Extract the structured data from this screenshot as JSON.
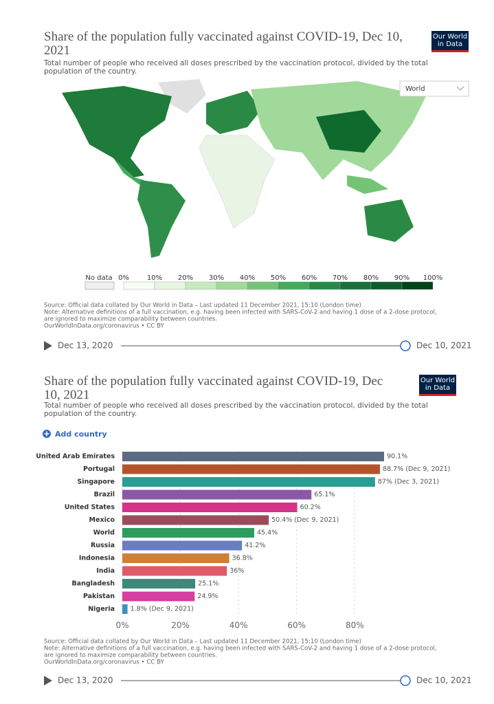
{
  "chart_data": [
    {
      "type": "map",
      "title": "Share of the population fully vaccinated against COVID-19, Dec 10, 2021",
      "subtitle": "Total number of people who received all doses prescribed by the vaccination protocol, divided by the total population of the country.",
      "logo": [
        "Our World",
        "in Data"
      ],
      "dropdown": "World",
      "legend": {
        "no_data_label": "No data",
        "xlim": [
          0,
          100
        ],
        "ticks": [
          {
            "value": 0,
            "label": "0%"
          },
          {
            "value": 10,
            "label": "10%"
          },
          {
            "value": 20,
            "label": "20%"
          },
          {
            "value": 30,
            "label": "30%"
          },
          {
            "value": 40,
            "label": "40%"
          },
          {
            "value": 50,
            "label": "50%"
          },
          {
            "value": 60,
            "label": "60%"
          },
          {
            "value": 70,
            "label": "70%"
          },
          {
            "value": 80,
            "label": "80%"
          },
          {
            "value": 90,
            "label": "90%"
          },
          {
            "value": 100,
            "label": "100%"
          }
        ],
        "colors": [
          "#f7fcf5",
          "#e5f5e0",
          "#c7e9c0",
          "#a1d99b",
          "#74c476",
          "#41ab5d",
          "#238b45",
          "#16723a",
          "#0d5c2e",
          "#00441b"
        ]
      },
      "source_lines": [
        "Source: Official data collated by Our World in Data – Last updated 11 December 2021, 15:10 (London time)",
        "Note: Alternative definitions of a full vaccination, e.g. having been infected with SARS-CoV-2 and having 1 dose of a 2-dose protocol,",
        "are ignored to maximize comparability between countries.",
        "OurWorldInData.org/coronavirus • CC BY"
      ],
      "timeline": [
        "Dec 13, 2020",
        "Dec 10, 2021"
      ]
    },
    {
      "type": "bar",
      "title": "Share of the population fully vaccinated against COVID-19, Dec 10, 2021",
      "subtitle": "Total number of people who received all doses prescribed by the vaccination protocol, divided by the total population of the country.",
      "logo": [
        "Our World",
        "in Data"
      ],
      "add_button": "Add country",
      "categories": [
        "United Arab Emirates",
        "Portugal",
        "Singapore",
        "Brazil",
        "United States",
        "Mexico",
        "World",
        "Russia",
        "Indonesia",
        "India",
        "Bangladesh",
        "Pakistan",
        "Nigeria"
      ],
      "values": [
        90.1,
        88.7,
        87,
        65.1,
        60.2,
        50.4,
        45.4,
        41.2,
        36.8,
        36,
        25.1,
        24.9,
        1.8
      ],
      "value_labels": [
        "90.1%",
        "88.7% (Dec 9, 2021)",
        "87% (Dec 3, 2021)",
        "65.1%",
        "60.2%",
        "50.4% (Dec 9, 2021)",
        "45.4%",
        "41.2%",
        "36.8%",
        "36%",
        "25.1%",
        "24.9%",
        "1.8% (Dec 9, 2021)"
      ],
      "colors": [
        "#5c6a85",
        "#b5532a",
        "#2a9d94",
        "#8b58a8",
        "#d3348a",
        "#9b4b5a",
        "#2e9c5f",
        "#6a7ec0",
        "#d08035",
        "#e05a6a",
        "#3a8a7c",
        "#d63ea0",
        "#3f8fc5"
      ],
      "xlim": [
        0,
        90.1
      ],
      "xticks": [
        {
          "value": 0,
          "label": "0%"
        },
        {
          "value": 20,
          "label": "20%"
        },
        {
          "value": 40,
          "label": "40%"
        },
        {
          "value": 60,
          "label": "60%"
        },
        {
          "value": 80,
          "label": "80%"
        }
      ],
      "grid": true,
      "source_lines": [
        "Source: Official data collated by Our World in Data – Last updated 11 December 2021, 15:10 (London time)",
        "Note: Alternative definitions of a full vaccination, e.g. having been infected with SARS-CoV-2 and having 1 dose of a 2-dose protocol,",
        "are ignored to maximize comparability between countries.",
        "OurWorldInData.org/coronavirus • CC BY"
      ],
      "timeline": [
        "Dec 13, 2020",
        "Dec 10, 2021"
      ]
    }
  ]
}
